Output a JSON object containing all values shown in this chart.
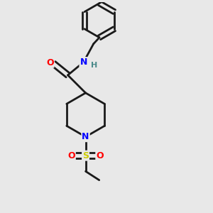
{
  "background_color": "#e8e8e8",
  "bond_color": "#1a1a1a",
  "atom_colors": {
    "O": "#ff0000",
    "N": "#0000ff",
    "S": "#cccc00",
    "H": "#4a8a8a",
    "C": "#1a1a1a"
  },
  "figsize": [
    3.0,
    3.0
  ],
  "dpi": 100
}
